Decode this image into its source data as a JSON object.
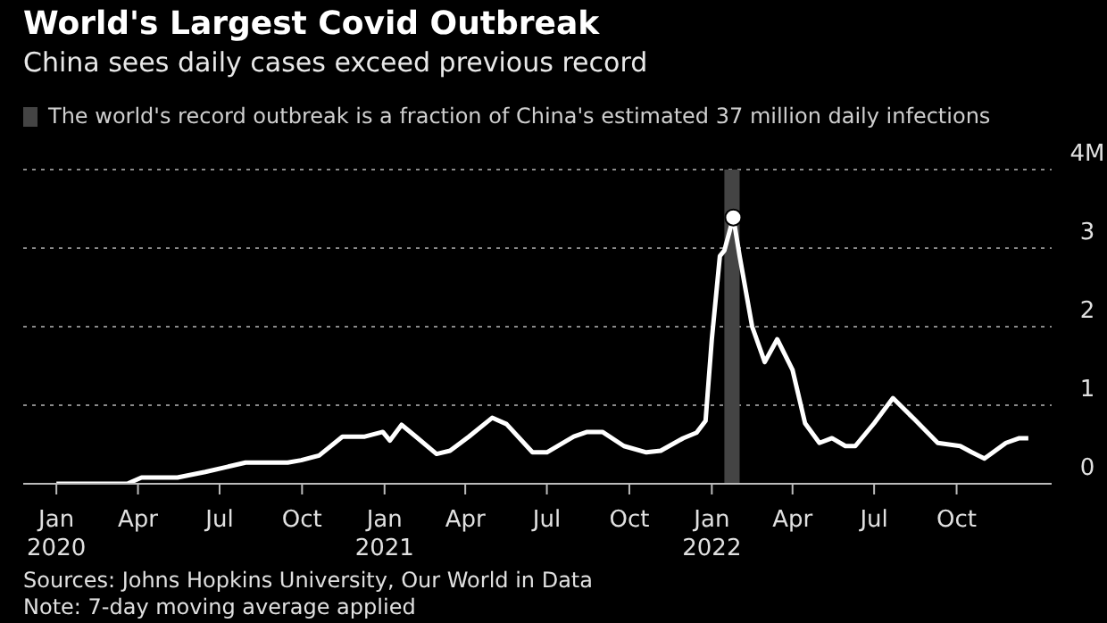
{
  "chart_data": {
    "type": "line",
    "title": "World's Largest Covid Outbreak",
    "subtitle": "China sees daily cases exceed previous record",
    "xlim": [
      "2019-11-25",
      "2023-01-15"
    ],
    "xticks": [
      {
        "value": "2020-01-01",
        "label": "Jan\n2020"
      },
      {
        "value": "2020-04-01",
        "label": "Apr"
      },
      {
        "value": "2020-07-01",
        "label": "Jul"
      },
      {
        "value": "2020-10-01",
        "label": "Oct"
      },
      {
        "value": "2021-01-01",
        "label": "Jan\n2021"
      },
      {
        "value": "2021-04-01",
        "label": "Apr"
      },
      {
        "value": "2021-07-01",
        "label": "Jul"
      },
      {
        "value": "2021-10-01",
        "label": "Oct"
      },
      {
        "value": "2022-01-01",
        "label": "Jan\n2022"
      },
      {
        "value": "2022-04-01",
        "label": "Apr"
      },
      {
        "value": "2022-07-01",
        "label": "Jul"
      },
      {
        "value": "2022-10-01",
        "label": "Oct"
      }
    ],
    "ylim": [
      0,
      4
    ],
    "yticks": [
      0,
      1,
      2,
      3,
      {
        "value": 4,
        "label": "4M"
      }
    ],
    "grid": "y",
    "legend": "top left",
    "bands": [
      {
        "axis": "x",
        "from": "2022-01-15",
        "to": "2022-02-01",
        "label": "The world's record outbreak is a fraction of China's estimated 37 million daily infections",
        "color": "#444444"
      }
    ],
    "series": [
      {
        "color": "#ffffff",
        "marker": "none",
        "x": [
          "2020-01-01",
          "2020-03-20",
          "2020-04-05",
          "2020-05-15",
          "2020-06-15",
          "2020-07-30",
          "2020-09-15",
          "2020-09-30",
          "2020-10-20",
          "2020-11-15",
          "2020-12-10",
          "2020-12-30",
          "2021-01-07",
          "2021-01-20",
          "2021-02-05",
          "2021-02-28",
          "2021-03-15",
          "2021-04-05",
          "2021-05-01",
          "2021-05-17",
          "2021-06-15",
          "2021-07-01",
          "2021-07-31",
          "2021-08-15",
          "2021-09-01",
          "2021-09-25",
          "2021-10-20",
          "2021-11-05",
          "2021-11-30",
          "2021-12-15",
          "2021-12-25",
          "2022-01-01",
          "2022-01-10",
          "2022-01-15",
          "2022-01-25",
          "2022-02-01",
          "2022-02-15",
          "2022-03-01",
          "2022-03-15",
          "2022-04-01",
          "2022-04-15",
          "2022-05-01",
          "2022-05-15",
          "2022-05-30",
          "2022-06-10",
          "2022-07-01",
          "2022-07-22",
          "2022-08-15",
          "2022-09-10",
          "2022-10-05",
          "2022-10-18",
          "2022-11-01",
          "2022-11-25",
          "2022-12-10",
          "2022-12-20"
        ],
        "values": [
          0,
          0,
          0.08,
          0.08,
          0.15,
          0.27,
          0.27,
          0.3,
          0.36,
          0.6,
          0.6,
          0.66,
          0.55,
          0.75,
          0.6,
          0.38,
          0.42,
          0.6,
          0.84,
          0.76,
          0.4,
          0.4,
          0.6,
          0.66,
          0.66,
          0.48,
          0.4,
          0.42,
          0.58,
          0.65,
          0.8,
          1.84,
          2.9,
          2.97,
          3.39,
          2.9,
          2.0,
          1.55,
          1.84,
          1.45,
          0.77,
          0.52,
          0.58,
          0.48,
          0.48,
          0.77,
          1.09,
          0.82,
          0.52,
          0.48,
          0.4,
          0.32,
          0.52,
          0.58,
          0.58
        ]
      },
      {
        "type": "scatter",
        "color": "#ffffff",
        "marker": "circle",
        "x": [
          "2022-01-25"
        ],
        "values": [
          3.39
        ]
      }
    ],
    "annotations": [
      "Sources: Johns Hopkins University, Our World in Data",
      "Note: 7-day moving average applied"
    ]
  }
}
